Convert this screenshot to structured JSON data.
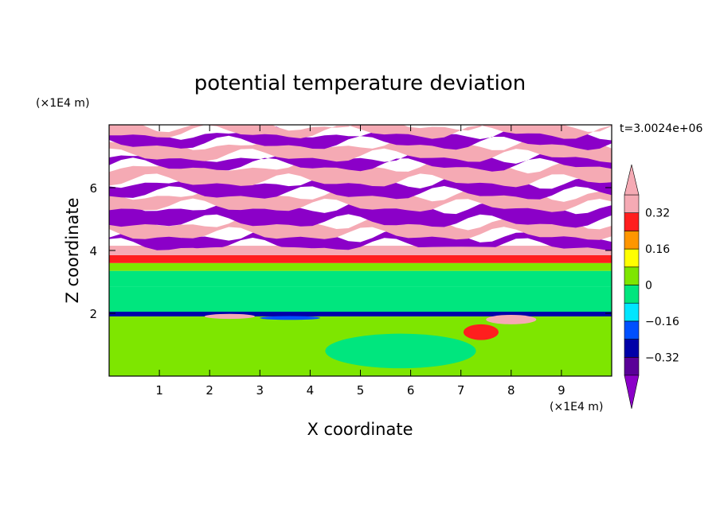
{
  "chart_data": {
    "type": "heatmap",
    "title": "potential temperature deviation",
    "xlabel": "X coordinate",
    "ylabel": "Z coordinate",
    "x_unit": "(×1E4 m)",
    "y_unit": "(×1E4 m)",
    "time_label": "t=3.0024e+06",
    "xlim": [
      0,
      10
    ],
    "ylim": [
      0,
      8
    ],
    "x_ticks": [
      1,
      2,
      3,
      4,
      5,
      6,
      7,
      8,
      9
    ],
    "y_ticks": [
      2,
      4,
      6
    ],
    "colorbar": {
      "levels": [
        -0.4,
        -0.32,
        -0.24,
        -0.16,
        -0.08,
        0,
        0.08,
        0.16,
        0.24,
        0.32,
        0.4
      ],
      "colors": [
        "#8B00C8",
        "#5A0098",
        "#0000A8",
        "#0050FF",
        "#00E6FF",
        "#00E67E",
        "#7EE600",
        "#FFFF00",
        "#FF9600",
        "#FF1E1E",
        "#F5AAB4"
      ],
      "tick_labels": [
        {
          "value": 0.32,
          "label": "0.32"
        },
        {
          "value": 0.16,
          "label": "0.16"
        },
        {
          "value": 0,
          "label": "0"
        },
        {
          "value": -0.16,
          "label": "−0.16"
        },
        {
          "value": -0.32,
          "label": "−0.32"
        }
      ]
    },
    "bands": [
      {
        "z0": 0.0,
        "z1": 1.9,
        "value": 0.03
      },
      {
        "z0": 1.9,
        "z1": 2.05,
        "value": -0.3
      },
      {
        "z0": 2.05,
        "z1": 2.85,
        "value": -0.02
      },
      {
        "z0": 2.85,
        "z1": 3.35,
        "value": -0.04
      },
      {
        "z0": 3.35,
        "z1": 3.6,
        "value": 0.06
      },
      {
        "z0": 3.6,
        "z1": 3.85,
        "value": 0.25
      },
      {
        "z0": 3.85,
        "z1": 4.15,
        "value": 0.5
      },
      {
        "z0": 4.15,
        "z1": 4.5,
        "value": -0.5
      },
      {
        "z0": 4.5,
        "z1": 4.9,
        "value": 0.5
      },
      {
        "z0": 4.9,
        "z1": 5.4,
        "value": -0.5
      },
      {
        "z0": 5.4,
        "z1": 5.8,
        "value": 0.5
      },
      {
        "z0": 5.8,
        "z1": 6.2,
        "value": -0.5
      },
      {
        "z0": 6.2,
        "z1": 6.7,
        "value": 0.5
      },
      {
        "z0": 6.7,
        "z1": 7.0,
        "value": -0.5
      },
      {
        "z0": 7.0,
        "z1": 7.4,
        "value": 0.5
      },
      {
        "z0": 7.4,
        "z1": 7.75,
        "value": -0.5
      },
      {
        "z0": 7.75,
        "z1": 8.0,
        "value": 0.5
      }
    ],
    "features": [
      {
        "x": 2.5,
        "z": 1.0,
        "rx": 1.2,
        "rz": 0.6,
        "value": 0.04
      },
      {
        "x": 5.8,
        "z": 0.8,
        "rx": 1.5,
        "rz": 0.55,
        "value": -0.03
      },
      {
        "x": 7.4,
        "z": 1.4,
        "rx": 0.35,
        "rz": 0.25,
        "value": 0.28
      },
      {
        "x": 8.0,
        "z": 1.8,
        "rx": 0.5,
        "rz": 0.15,
        "value": 0.33
      },
      {
        "x": 2.4,
        "z": 1.9,
        "rx": 0.5,
        "rz": 0.08,
        "value": 0.45
      },
      {
        "x": 3.6,
        "z": 1.85,
        "rx": 0.6,
        "rz": 0.06,
        "value": -0.2
      },
      {
        "x": 2.9,
        "z": 4.0,
        "rx": 1.4,
        "rz": 0.12,
        "value": 0.33
      },
      {
        "x": 7.0,
        "z": 4.0,
        "rx": 1.5,
        "rz": 0.12,
        "value": 0.33
      }
    ]
  }
}
